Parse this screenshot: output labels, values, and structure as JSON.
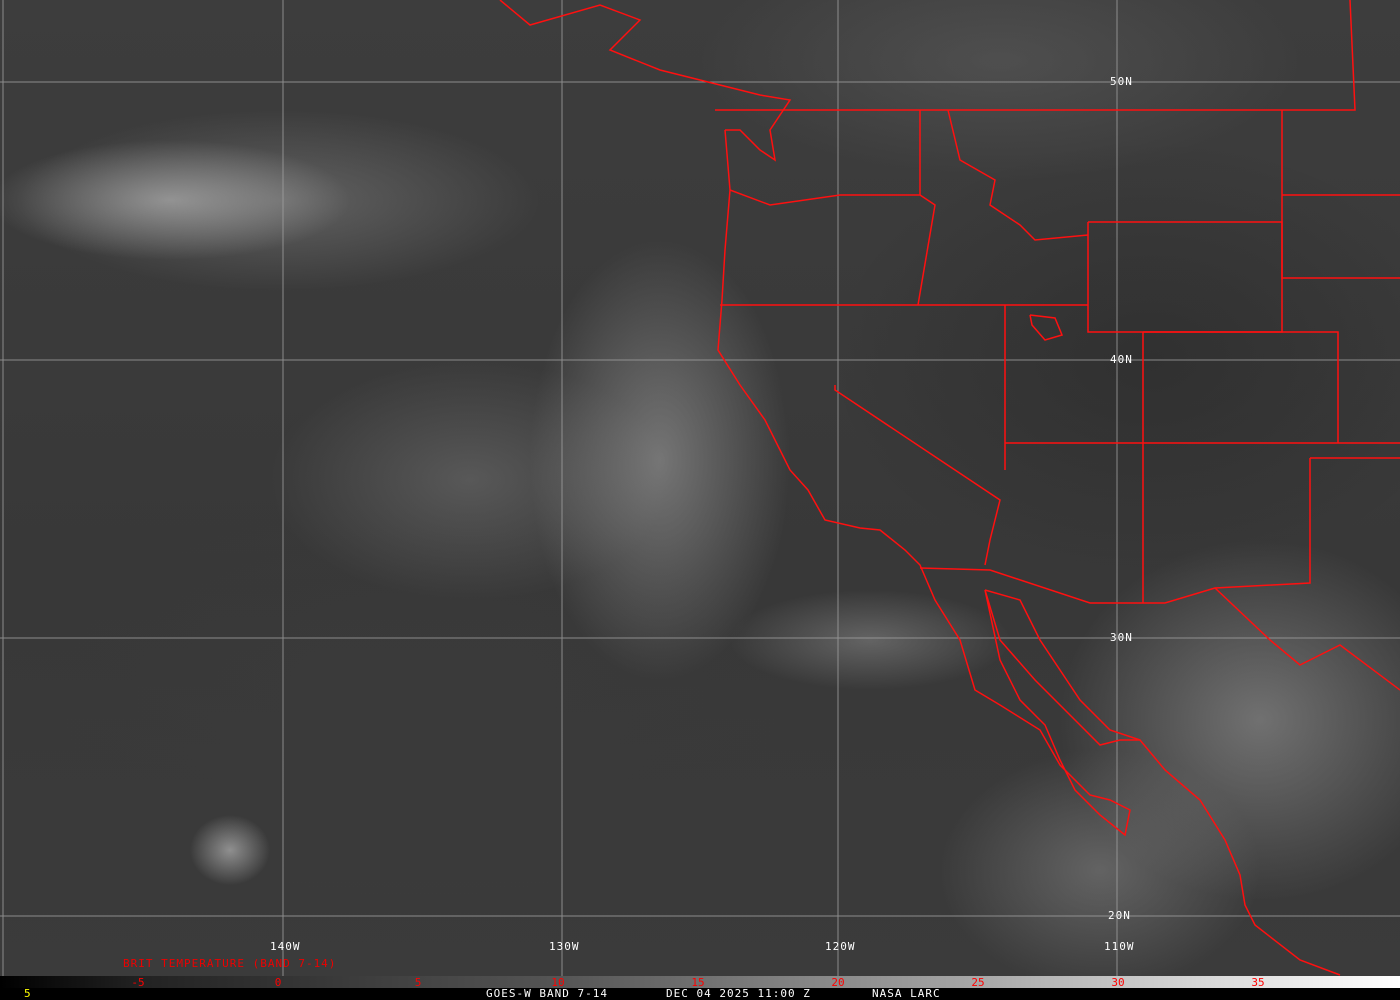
{
  "map": {
    "latitude_labels": [
      "50N",
      "40N",
      "30N",
      "20N"
    ],
    "longitude_labels": [
      "140W",
      "130W",
      "120W",
      "110W"
    ],
    "product_label": "BRIT TEMPERATURE (BAND 7-14)",
    "boundary_color": "#ff0000",
    "grid_color": "#a0a0a0"
  },
  "colorbar": {
    "ticks": [
      "-5",
      "0",
      "5",
      "10",
      "15",
      "20",
      "25",
      "30",
      "35"
    ],
    "tick_color": "#ff0000"
  },
  "footer": {
    "frame_number": "5",
    "satellite_band": "GOES-W BAND 7-14",
    "datetime": "DEC 04 2025 11:00 Z",
    "source": "NASA LARC"
  }
}
